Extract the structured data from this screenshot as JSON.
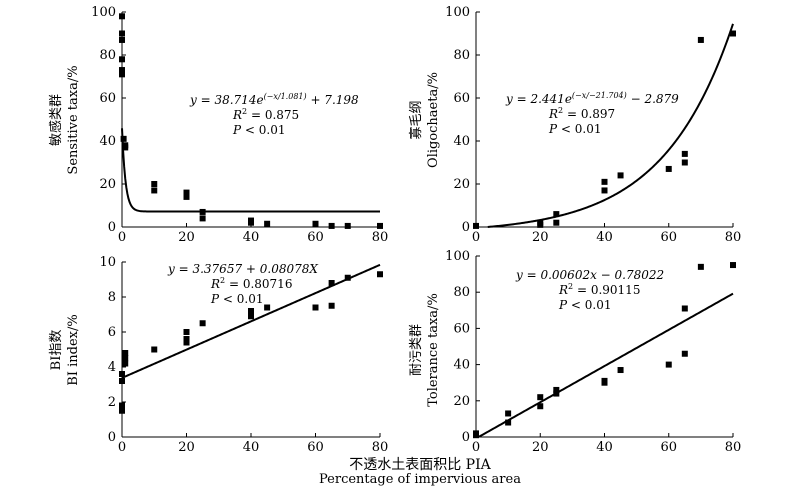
{
  "chart_data": [
    {
      "type": "scatter",
      "panel": "top-left",
      "ylabel_cn": "敏感类群",
      "ylabel_en": "Sensitive taxa/%",
      "xlim": [
        0,
        80
      ],
      "ylim": [
        0,
        100
      ],
      "xticks": [
        "0",
        "20",
        "40",
        "60",
        "80"
      ],
      "yticks": [
        "0",
        "20",
        "40",
        "60",
        "80",
        "100"
      ],
      "points": [
        [
          0,
          98
        ],
        [
          0,
          90
        ],
        [
          0,
          87
        ],
        [
          0,
          78
        ],
        [
          0,
          73
        ],
        [
          0,
          71
        ],
        [
          0.5,
          41
        ],
        [
          1,
          38
        ],
        [
          1,
          37
        ],
        [
          10,
          20
        ],
        [
          10,
          17
        ],
        [
          20,
          16
        ],
        [
          20,
          15
        ],
        [
          20,
          14
        ],
        [
          25,
          7
        ],
        [
          25,
          4
        ],
        [
          40,
          3
        ],
        [
          40,
          2
        ],
        [
          45,
          1.5
        ],
        [
          60,
          1.5
        ],
        [
          65,
          0.5
        ],
        [
          70,
          0.5
        ],
        [
          80,
          0.5
        ]
      ],
      "fit": {
        "kind": "exp-decay",
        "a": 38.714,
        "b": 1.081,
        "c": 7.198
      },
      "eq_prefix": "y = 38.714e",
      "eq_exp": "(−x/1.081)",
      "eq_suffix": " + 7.198",
      "r2_label": "R",
      "r2_value": " = 0.875",
      "p_label": "P",
      "p_value": " < 0.01"
    },
    {
      "type": "scatter",
      "panel": "top-right",
      "ylabel_cn": "寡毛纲",
      "ylabel_en": "Oligochaeta/%",
      "xlim": [
        0,
        80
      ],
      "ylim": [
        0,
        100
      ],
      "xticks": [
        "0",
        "20",
        "40",
        "60",
        "80"
      ],
      "yticks": [
        "0",
        "20",
        "40",
        "60",
        "80",
        "100"
      ],
      "points": [
        [
          0,
          0.5
        ],
        [
          20,
          1
        ],
        [
          20,
          2
        ],
        [
          25,
          6
        ],
        [
          25,
          2
        ],
        [
          40,
          21
        ],
        [
          40,
          17
        ],
        [
          45,
          24
        ],
        [
          60,
          27
        ],
        [
          65,
          34
        ],
        [
          65,
          30
        ],
        [
          70,
          87
        ],
        [
          80,
          90
        ]
      ],
      "fit": {
        "kind": "exp-growth",
        "a": 2.441,
        "b": 21.704,
        "c": -2.879
      },
      "eq_prefix": "y = 2.441e",
      "eq_exp": "(−x/−21.704)",
      "eq_suffix": " − 2.879",
      "r2_label": "R",
      "r2_value": " = 0.897",
      "p_label": "P",
      "p_value": " < 0.01"
    },
    {
      "type": "scatter",
      "panel": "bottom-left",
      "ylabel_cn": "BI指数",
      "ylabel_en": "BI index/%",
      "xlim": [
        0,
        80
      ],
      "ylim": [
        0,
        10
      ],
      "xticks": [
        "0",
        "20",
        "40",
        "60",
        "80"
      ],
      "yticks": [
        "0",
        "2",
        "4",
        "6",
        "8",
        "10"
      ],
      "points": [
        [
          0,
          1.5
        ],
        [
          0,
          1.8
        ],
        [
          0,
          3.2
        ],
        [
          0,
          3.6
        ],
        [
          1,
          4.2
        ],
        [
          1,
          4.5
        ],
        [
          1,
          4.8
        ],
        [
          10,
          5.0
        ],
        [
          20,
          5.4
        ],
        [
          20,
          5.6
        ],
        [
          20,
          6.0
        ],
        [
          25,
          6.5
        ],
        [
          40,
          6.9
        ],
        [
          40,
          7.2
        ],
        [
          45,
          7.4
        ],
        [
          60,
          7.4
        ],
        [
          65,
          7.5
        ],
        [
          65,
          8.8
        ],
        [
          70,
          9.1
        ],
        [
          80,
          9.3
        ]
      ],
      "fit": {
        "kind": "linear",
        "intercept": 3.37657,
        "slope": 0.08078
      },
      "eq_prefix": "y = 3.37657  + 0.08078X",
      "eq_exp": "",
      "eq_suffix": "",
      "r2_label": "R",
      "r2_value": " = 0.80716",
      "p_label": "P",
      "p_value": " < 0.01"
    },
    {
      "type": "scatter",
      "panel": "bottom-right",
      "ylabel_cn": "耐污类群",
      "ylabel_en": "Tolerance taxa/%",
      "xlim": [
        0,
        80
      ],
      "ylim": [
        0,
        100
      ],
      "xticks": [
        "0",
        "20",
        "40",
        "60",
        "80"
      ],
      "yticks": [
        "0",
        "20",
        "40",
        "60",
        "80",
        "100"
      ],
      "points": [
        [
          0,
          1
        ],
        [
          0,
          2
        ],
        [
          10,
          13
        ],
        [
          10,
          8
        ],
        [
          20,
          22
        ],
        [
          20,
          17
        ],
        [
          25,
          26
        ],
        [
          25,
          24
        ],
        [
          40,
          31
        ],
        [
          40,
          30
        ],
        [
          45,
          37
        ],
        [
          60,
          40
        ],
        [
          65,
          46
        ],
        [
          65,
          71
        ],
        [
          70,
          94
        ],
        [
          80,
          95
        ]
      ],
      "fit": {
        "kind": "linear",
        "intercept": -0.78022,
        "slope": 0.00602
      },
      "eq_prefix": "y = 0.00602x  − 0.78022",
      "eq_exp": "",
      "eq_suffix": "",
      "r2_label": "R",
      "r2_value": " = 0.90115",
      "p_label": "P",
      "p_value": " < 0.01"
    }
  ],
  "shared_xlabel_cn": "不透水土表面积比 PIA",
  "shared_xlabel_en": "Percentage of impervious area"
}
